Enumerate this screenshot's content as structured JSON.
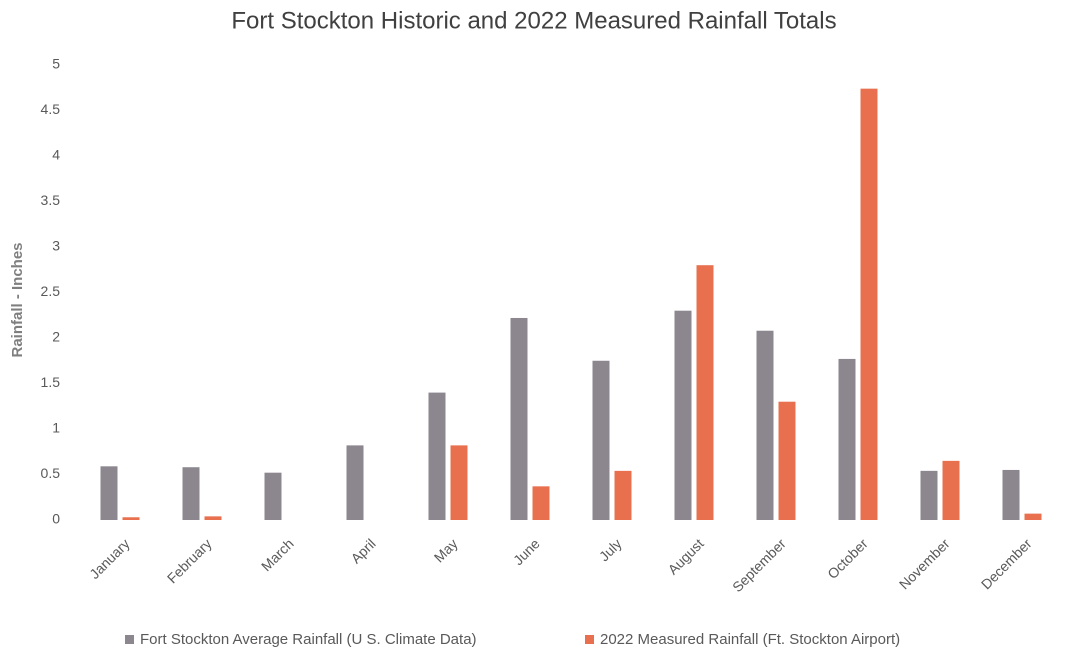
{
  "chart_data": {
    "type": "bar",
    "title": "Fort Stockton Historic and 2022 Measured Rainfall Totals",
    "y_label": "Rainfall - Inches",
    "categories": [
      "January",
      "February",
      "March",
      "April",
      "May",
      "June",
      "July",
      "August",
      "September",
      "October",
      "November",
      "December"
    ],
    "series": [
      {
        "name": "Fort Stockton Average Rainfall (U S. Climate Data)",
        "color": "#8c878f",
        "values": [
          0.59,
          0.58,
          0.52,
          0.82,
          1.4,
          2.22,
          1.75,
          2.3,
          2.08,
          1.77,
          0.54,
          0.55
        ]
      },
      {
        "name": "2022 Measured Rainfall (Ft. Stockton Airport)",
        "color": "#e8704f",
        "values": [
          0.03,
          0.04,
          0,
          0,
          0.82,
          0.37,
          0.54,
          2.8,
          1.3,
          4.74,
          0.65,
          0.07
        ]
      }
    ],
    "ylim": [
      0,
      5
    ],
    "yticks": [
      0,
      0.5,
      1,
      1.5,
      2,
      2.5,
      3,
      3.5,
      4,
      4.5,
      5
    ],
    "grid": false,
    "legend": "bottom"
  }
}
